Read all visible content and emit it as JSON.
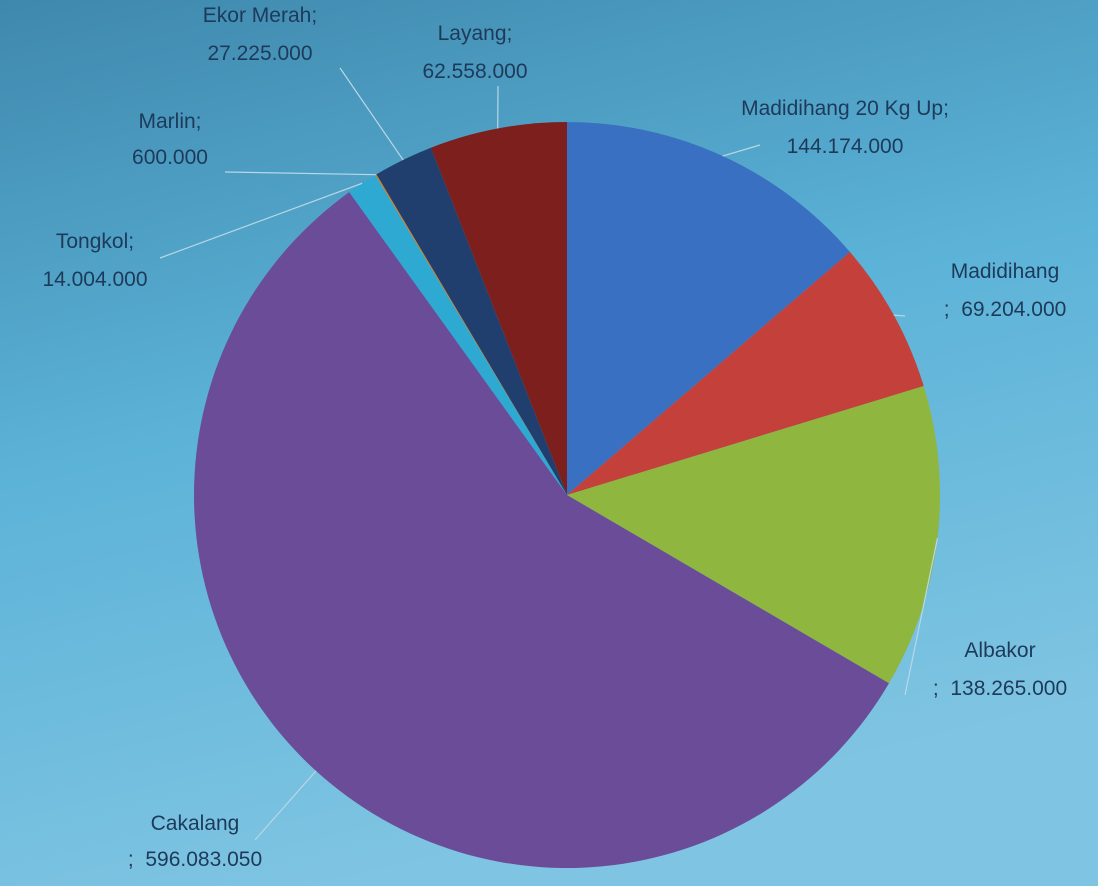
{
  "chart_data": {
    "type": "pie",
    "categories": [
      "Madidihang 20 Kg Up",
      "Madidihang",
      "Albakor",
      "Cakalang",
      "Tongkol",
      "Marlin",
      "Ekor Merah",
      "Layang"
    ],
    "values": [
      144174000,
      69204000,
      138265000,
      596083050,
      14004000,
      600000,
      27225000,
      62558000
    ],
    "value_labels": [
      "144.174.000",
      "69.204.000",
      "138.265.000",
      "596.083.050",
      "14.004.000",
      "600.000",
      "27.225.000",
      "62.558.000"
    ],
    "separator": ";",
    "colors": [
      "#3a70c2",
      "#c4403a",
      "#8fb63f",
      "#6a4c98",
      "#2ea9d2",
      "#e0801f",
      "#213f6e",
      "#7c1f1d"
    ]
  }
}
